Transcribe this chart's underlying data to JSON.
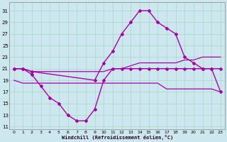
{
  "xlabel": "Windchill (Refroidissement éolien,°C)",
  "background_color": "#cce8ee",
  "grid_color": "#aad4cc",
  "line_color": "#aa00aa",
  "x_ticks": [
    0,
    1,
    2,
    3,
    4,
    5,
    6,
    7,
    8,
    9,
    10,
    11,
    12,
    13,
    14,
    15,
    16,
    17,
    18,
    19,
    20,
    21,
    22,
    23
  ],
  "y_ticks": [
    11,
    13,
    15,
    17,
    19,
    21,
    23,
    25,
    27,
    29,
    31
  ],
  "xlim": [
    -0.5,
    23.5
  ],
  "ylim": [
    10.5,
    32.5
  ],
  "series1_x": [
    0,
    1,
    2,
    3,
    4,
    5,
    6,
    7,
    8,
    9,
    10,
    11,
    12,
    13,
    14,
    15,
    16,
    17,
    18,
    19,
    20,
    21,
    22,
    23
  ],
  "series1_y": [
    21,
    21,
    20,
    18,
    16,
    15,
    13,
    12,
    12,
    14,
    19,
    21,
    21,
    21,
    21,
    21,
    21,
    21,
    21,
    21,
    21,
    21,
    21,
    21
  ],
  "series2_x": [
    0,
    1,
    2,
    3,
    4,
    5,
    6,
    7,
    8,
    9,
    10,
    11,
    12,
    13,
    14,
    15,
    16,
    17,
    18,
    19,
    20,
    21,
    22,
    23
  ],
  "series2_y": [
    21,
    21,
    20.5,
    20.5,
    20.5,
    20.5,
    20.5,
    20.5,
    20.5,
    20.5,
    20.5,
    21,
    21,
    21.5,
    22,
    22,
    22,
    22,
    22,
    22.5,
    22.5,
    23,
    23,
    23
  ],
  "series3_x": [
    0,
    1,
    2,
    9,
    10,
    11,
    12,
    13,
    14,
    15,
    16,
    17,
    18,
    19,
    20,
    21,
    22,
    23
  ],
  "series3_y": [
    21,
    21,
    20.5,
    19,
    22,
    24,
    27,
    29,
    31,
    31,
    29,
    28,
    27,
    23,
    22,
    21,
    21,
    17
  ],
  "series4_x": [
    0,
    1,
    2,
    3,
    4,
    5,
    6,
    7,
    8,
    9,
    10,
    11,
    12,
    13,
    14,
    15,
    16,
    17,
    18,
    19,
    20,
    21,
    22,
    23
  ],
  "series4_y": [
    19,
    18.5,
    18.5,
    18.5,
    18.5,
    18.5,
    18.5,
    18.5,
    18.5,
    18.5,
    18.5,
    18.5,
    18.5,
    18.5,
    18.5,
    18.5,
    18.5,
    17.5,
    17.5,
    17.5,
    17.5,
    17.5,
    17.5,
    17
  ]
}
